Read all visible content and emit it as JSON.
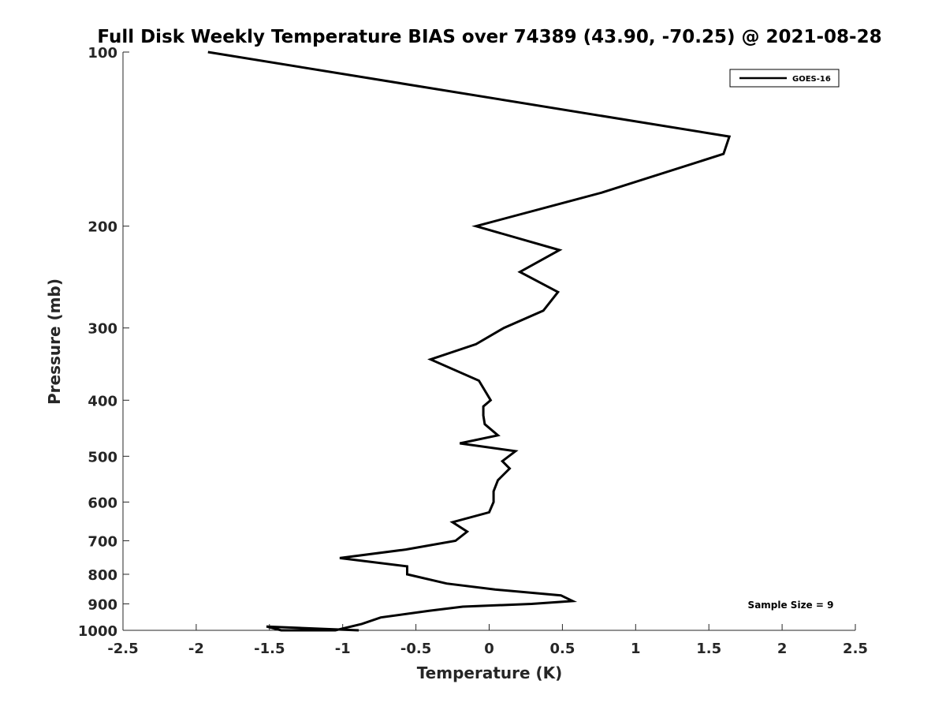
{
  "chart_data": {
    "type": "line",
    "title": "Full Disk Weekly Temperature BIAS over 74389 (43.90, -70.25) @ 2021-08-28",
    "xlabel": "Temperature (K)",
    "ylabel": "Pressure (mb)",
    "xlim": [
      -2.5,
      2.5
    ],
    "ylim": [
      100,
      1000
    ],
    "y_scale": "log",
    "y_reversed": true,
    "x_ticks": [
      "-2.5",
      "-2",
      "-1.5",
      "-1",
      "-0.5",
      "0",
      "0.5",
      "1",
      "1.5",
      "2",
      "2.5"
    ],
    "y_ticks": [
      "100",
      "200",
      "300",
      "400",
      "500",
      "600",
      "700",
      "800",
      "900",
      "1000"
    ],
    "grid": false,
    "legend_position": "top-right",
    "annotation": "Sample Size = 9",
    "series": [
      {
        "name": "GOES-16",
        "color": "#000000",
        "x": [
          -1.92,
          1.64,
          1.6,
          0.77,
          -0.09,
          0.48,
          0.21,
          0.47,
          0.37,
          0.1,
          -0.09,
          -0.4,
          -0.07,
          0.01,
          -0.04,
          -0.04,
          -0.03,
          0.06,
          -0.2,
          0.18,
          0.09,
          0.14,
          0.06,
          0.03,
          0.03,
          0.0,
          -0.25,
          -0.15,
          -0.23,
          -0.57,
          -1.02,
          -0.56,
          -0.56,
          -0.29,
          0.04,
          0.49,
          0.57,
          0.29,
          -0.18,
          -0.41,
          -0.74,
          -0.87,
          -1.05,
          -1.42,
          -1.52,
          -0.89
        ],
        "y": [
          100,
          140,
          150,
          175,
          200,
          220,
          240,
          260,
          280,
          300,
          320,
          340,
          370,
          400,
          410,
          425,
          440,
          460,
          475,
          490,
          510,
          525,
          550,
          575,
          600,
          625,
          650,
          675,
          700,
          725,
          750,
          775,
          800,
          830,
          850,
          870,
          890,
          900,
          910,
          925,
          950,
          975,
          1000,
          1000,
          985,
          1000
        ]
      }
    ]
  }
}
